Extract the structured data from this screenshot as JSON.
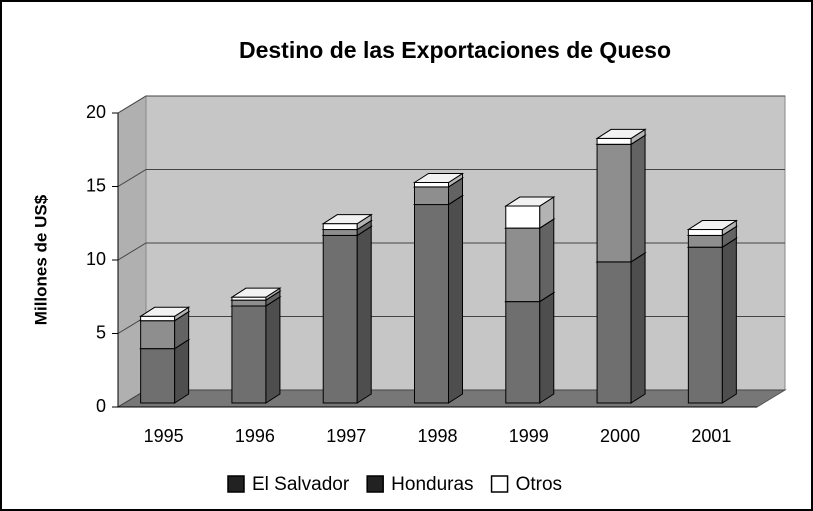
{
  "chart_data": {
    "type": "bar3d_stacked",
    "title": "Destino de las Exportaciones de Queso",
    "y_label": "Millones de US$",
    "categories": [
      "1995",
      "1996",
      "1997",
      "1998",
      "1999",
      "2000",
      "2001"
    ],
    "series": [
      {
        "name": "El Salvador",
        "color": "#6f6f6f",
        "values": [
          3.7,
          6.6,
          11.4,
          13.5,
          6.9,
          9.6,
          10.6
        ]
      },
      {
        "name": "Honduras",
        "color": "#8e8e8e",
        "values": [
          1.9,
          0.4,
          0.4,
          1.2,
          5.0,
          8.0,
          0.8
        ]
      },
      {
        "name": "Otros",
        "color": "#ffffff",
        "values": [
          0.3,
          0.2,
          0.4,
          0.3,
          1.5,
          0.4,
          0.4
        ]
      }
    ],
    "ylim": [
      0,
      20
    ],
    "yticks": [
      0,
      5,
      10,
      15,
      20
    ],
    "grid": true,
    "legend": "bottom"
  }
}
